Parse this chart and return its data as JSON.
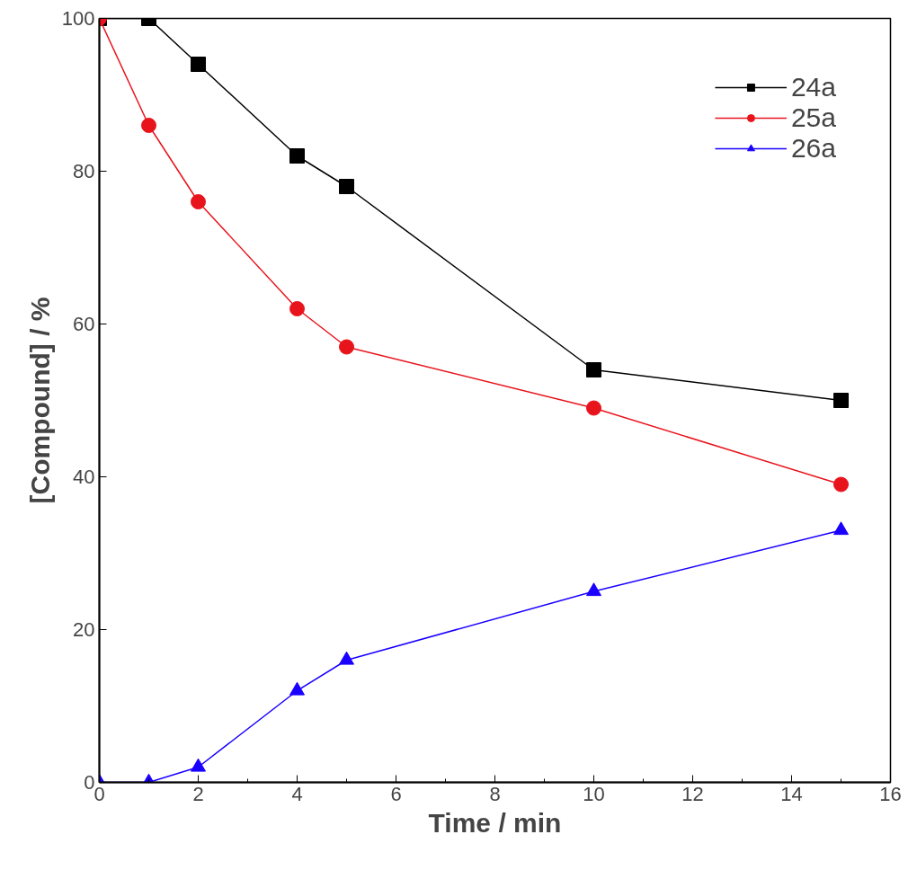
{
  "chart_data": {
    "type": "line",
    "xlabel": "Time / min",
    "ylabel": "[Compound] / %",
    "x": [
      0,
      1,
      2,
      4,
      5,
      10,
      15
    ],
    "series": [
      {
        "name": "24a",
        "color": "#000000",
        "marker": "square",
        "values": [
          100,
          100,
          94,
          82,
          78,
          54,
          50
        ]
      },
      {
        "name": "25a",
        "color": "#e8141c",
        "marker": "circle",
        "values": [
          100,
          86,
          76,
          62,
          57,
          49,
          39
        ]
      },
      {
        "name": "26a",
        "color": "#1a00ff",
        "marker": "triangle",
        "values": [
          0,
          0,
          2,
          12,
          16,
          25,
          33
        ]
      }
    ],
    "xlim": [
      0,
      16
    ],
    "ylim": [
      0,
      100
    ],
    "xticks": [
      0,
      2,
      4,
      6,
      8,
      10,
      12,
      14,
      16
    ],
    "yticks": [
      0,
      20,
      40,
      60,
      80,
      100
    ],
    "grid": false,
    "legend": "top right",
    "line_style": "solid"
  }
}
